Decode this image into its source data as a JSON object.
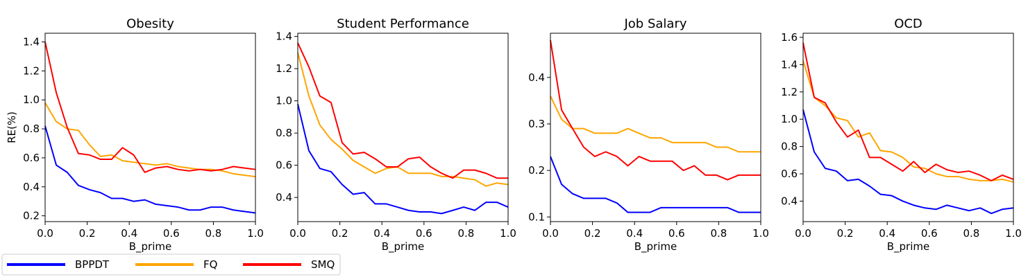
{
  "legend": {
    "placement": "bottom-left",
    "entries": [
      {
        "name": "BPPDT",
        "color": "#0000ff"
      },
      {
        "name": "FQ",
        "color": "#ffa500"
      },
      {
        "name": "SMQ",
        "color": "#ff0000"
      }
    ]
  },
  "chart_data": [
    {
      "type": "line",
      "title": "Obesity",
      "xlabel": "B_prime",
      "ylabel": "RE(%)",
      "xlim": [
        0.0,
        1.0
      ],
      "ylim": [
        0.16,
        1.46
      ],
      "xticks": [
        0.0,
        0.2,
        0.4,
        0.6,
        0.8,
        1.0
      ],
      "xtick_labels": [
        "0.0",
        "0.2",
        "0.4",
        "0.6",
        "0.8",
        "1.0"
      ],
      "yticks": [
        0.2,
        0.4,
        0.6,
        0.8,
        1.0,
        1.2,
        1.4
      ],
      "ytick_labels": [
        "0.2",
        "0.4",
        "0.6",
        "0.8",
        "1.0",
        "1.2",
        "1.4"
      ],
      "x": [
        0.0,
        0.053,
        0.105,
        0.158,
        0.211,
        0.263,
        0.316,
        0.368,
        0.421,
        0.474,
        0.526,
        0.579,
        0.632,
        0.684,
        0.737,
        0.789,
        0.842,
        0.895,
        0.947,
        1.0
      ],
      "series": [
        {
          "name": "BPPDT",
          "color": "#0000ff",
          "values": [
            0.82,
            0.55,
            0.5,
            0.41,
            0.38,
            0.36,
            0.32,
            0.32,
            0.3,
            0.31,
            0.28,
            0.27,
            0.26,
            0.24,
            0.24,
            0.26,
            0.26,
            0.24,
            0.23,
            0.22
          ]
        },
        {
          "name": "FQ",
          "color": "#ffa500",
          "values": [
            0.98,
            0.85,
            0.8,
            0.79,
            0.69,
            0.61,
            0.62,
            0.58,
            0.57,
            0.56,
            0.55,
            0.56,
            0.54,
            0.53,
            0.52,
            0.52,
            0.51,
            0.49,
            0.48,
            0.47
          ]
        },
        {
          "name": "SMQ",
          "color": "#ff0000",
          "values": [
            1.4,
            1.05,
            0.81,
            0.63,
            0.62,
            0.59,
            0.59,
            0.67,
            0.62,
            0.5,
            0.53,
            0.54,
            0.52,
            0.51,
            0.52,
            0.51,
            0.52,
            0.54,
            0.53,
            0.52
          ]
        }
      ]
    },
    {
      "type": "line",
      "title": "Student Performance",
      "xlabel": "B_prime",
      "ylabel": "",
      "xlim": [
        0.0,
        1.0
      ],
      "ylim": [
        0.25,
        1.42
      ],
      "xticks": [
        0.0,
        0.2,
        0.4,
        0.6,
        0.8,
        1.0
      ],
      "xtick_labels": [
        "0.0",
        "0.2",
        "0.4",
        "0.6",
        "0.8",
        "1.0"
      ],
      "yticks": [
        0.4,
        0.6,
        0.8,
        1.0,
        1.2,
        1.4
      ],
      "ytick_labels": [
        "0.4",
        "0.6",
        "0.8",
        "1.0",
        "1.2",
        "1.4"
      ],
      "x": [
        0.0,
        0.053,
        0.105,
        0.158,
        0.211,
        0.263,
        0.316,
        0.368,
        0.421,
        0.474,
        0.526,
        0.579,
        0.632,
        0.684,
        0.737,
        0.789,
        0.842,
        0.895,
        0.947,
        1.0
      ],
      "series": [
        {
          "name": "BPPDT",
          "color": "#0000ff",
          "values": [
            0.98,
            0.69,
            0.58,
            0.56,
            0.48,
            0.42,
            0.43,
            0.36,
            0.36,
            0.34,
            0.32,
            0.31,
            0.31,
            0.3,
            0.32,
            0.34,
            0.32,
            0.37,
            0.37,
            0.34
          ]
        },
        {
          "name": "FQ",
          "color": "#ffa500",
          "values": [
            1.3,
            1.03,
            0.85,
            0.76,
            0.7,
            0.63,
            0.59,
            0.55,
            0.58,
            0.59,
            0.55,
            0.55,
            0.55,
            0.53,
            0.53,
            0.52,
            0.51,
            0.47,
            0.49,
            0.48
          ]
        },
        {
          "name": "SMQ",
          "color": "#ff0000",
          "values": [
            1.36,
            1.21,
            1.03,
            0.99,
            0.74,
            0.67,
            0.68,
            0.64,
            0.59,
            0.59,
            0.64,
            0.65,
            0.59,
            0.55,
            0.52,
            0.57,
            0.57,
            0.55,
            0.52,
            0.52
          ]
        }
      ]
    },
    {
      "type": "line",
      "title": "Job Salary",
      "xlabel": "B_prime",
      "ylabel": "",
      "xlim": [
        0.0,
        1.0
      ],
      "ylim": [
        0.09,
        0.495
      ],
      "xticks": [
        0.0,
        0.2,
        0.4,
        0.6,
        0.8,
        1.0
      ],
      "xtick_labels": [
        "0.0",
        "0.2",
        "0.4",
        "0.6",
        "0.8",
        "1.0"
      ],
      "yticks": [
        0.1,
        0.2,
        0.3,
        0.4
      ],
      "ytick_labels": [
        "0.1",
        "0.2",
        "0.3",
        "0.4"
      ],
      "x": [
        0.0,
        0.053,
        0.105,
        0.158,
        0.211,
        0.263,
        0.316,
        0.368,
        0.421,
        0.474,
        0.526,
        0.579,
        0.632,
        0.684,
        0.737,
        0.789,
        0.842,
        0.895,
        0.947,
        1.0
      ],
      "series": [
        {
          "name": "BPPDT",
          "color": "#0000ff",
          "values": [
            0.23,
            0.17,
            0.15,
            0.14,
            0.14,
            0.14,
            0.13,
            0.11,
            0.11,
            0.11,
            0.12,
            0.12,
            0.12,
            0.12,
            0.12,
            0.12,
            0.12,
            0.11,
            0.11,
            0.11
          ]
        },
        {
          "name": "FQ",
          "color": "#ffa500",
          "values": [
            0.36,
            0.31,
            0.29,
            0.29,
            0.28,
            0.28,
            0.28,
            0.29,
            0.28,
            0.27,
            0.27,
            0.26,
            0.26,
            0.26,
            0.26,
            0.25,
            0.25,
            0.24,
            0.24,
            0.24
          ]
        },
        {
          "name": "SMQ",
          "color": "#ff0000",
          "values": [
            0.48,
            0.33,
            0.29,
            0.25,
            0.23,
            0.24,
            0.23,
            0.21,
            0.23,
            0.22,
            0.22,
            0.22,
            0.2,
            0.21,
            0.19,
            0.19,
            0.18,
            0.19,
            0.19,
            0.19
          ]
        }
      ]
    },
    {
      "type": "line",
      "title": "OCD",
      "xlabel": "B_prime",
      "ylabel": "",
      "xlim": [
        0.0,
        1.0
      ],
      "ylim": [
        0.25,
        1.63
      ],
      "xticks": [
        0.0,
        0.2,
        0.4,
        0.6,
        0.8,
        1.0
      ],
      "xtick_labels": [
        "0.0",
        "0.2",
        "0.4",
        "0.6",
        "0.8",
        "1.0"
      ],
      "yticks": [
        0.4,
        0.6,
        0.8,
        1.0,
        1.2,
        1.4,
        1.6
      ],
      "ytick_labels": [
        "0.4",
        "0.6",
        "0.8",
        "1.0",
        "1.2",
        "1.4",
        "1.6"
      ],
      "x": [
        0.0,
        0.053,
        0.105,
        0.158,
        0.211,
        0.263,
        0.316,
        0.368,
        0.421,
        0.474,
        0.526,
        0.579,
        0.632,
        0.684,
        0.737,
        0.789,
        0.842,
        0.895,
        0.947,
        1.0
      ],
      "series": [
        {
          "name": "BPPDT",
          "color": "#0000ff",
          "values": [
            1.07,
            0.76,
            0.64,
            0.62,
            0.55,
            0.56,
            0.51,
            0.45,
            0.44,
            0.4,
            0.37,
            0.35,
            0.34,
            0.37,
            0.35,
            0.33,
            0.35,
            0.31,
            0.34,
            0.35
          ]
        },
        {
          "name": "FQ",
          "color": "#ffa500",
          "values": [
            1.43,
            1.16,
            1.1,
            1.01,
            0.99,
            0.87,
            0.9,
            0.77,
            0.76,
            0.72,
            0.65,
            0.64,
            0.6,
            0.58,
            0.58,
            0.56,
            0.55,
            0.55,
            0.56,
            0.54
          ]
        },
        {
          "name": "SMQ",
          "color": "#ff0000",
          "values": [
            1.56,
            1.16,
            1.12,
            0.98,
            0.87,
            0.92,
            0.72,
            0.72,
            0.67,
            0.62,
            0.69,
            0.61,
            0.67,
            0.63,
            0.61,
            0.62,
            0.59,
            0.55,
            0.59,
            0.56
          ]
        }
      ]
    }
  ]
}
